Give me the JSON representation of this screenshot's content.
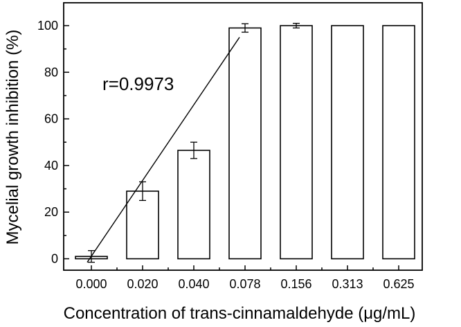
{
  "chart_data": {
    "type": "bar",
    "title": "",
    "xlabel": "Concentration of trans-cinnamaldehyde (μg/mL)",
    "ylabel": "Mycelial growth inhibition (%)",
    "categories": [
      "0.000",
      "0.020",
      "0.040",
      "0.078",
      "0.156",
      "0.313",
      "0.625"
    ],
    "values": [
      1.0,
      29.0,
      46.5,
      99.0,
      100.0,
      100.0,
      100.0
    ],
    "errors": [
      2.5,
      4.0,
      3.5,
      1.8,
      1.0,
      0.0,
      0.0
    ],
    "ylim": [
      -5,
      110
    ],
    "yticks": [
      "0",
      "20",
      "40",
      "60",
      "80",
      "100"
    ],
    "ytick_values": [
      0,
      20,
      40,
      60,
      80,
      100
    ],
    "grid": false,
    "annotations": [
      {
        "text": "r=0.9973"
      }
    ],
    "regression_line": {
      "from": {
        "category": "0.000",
        "value": -1.5
      },
      "to": {
        "category": "0.078",
        "value": 95.0
      }
    }
  }
}
